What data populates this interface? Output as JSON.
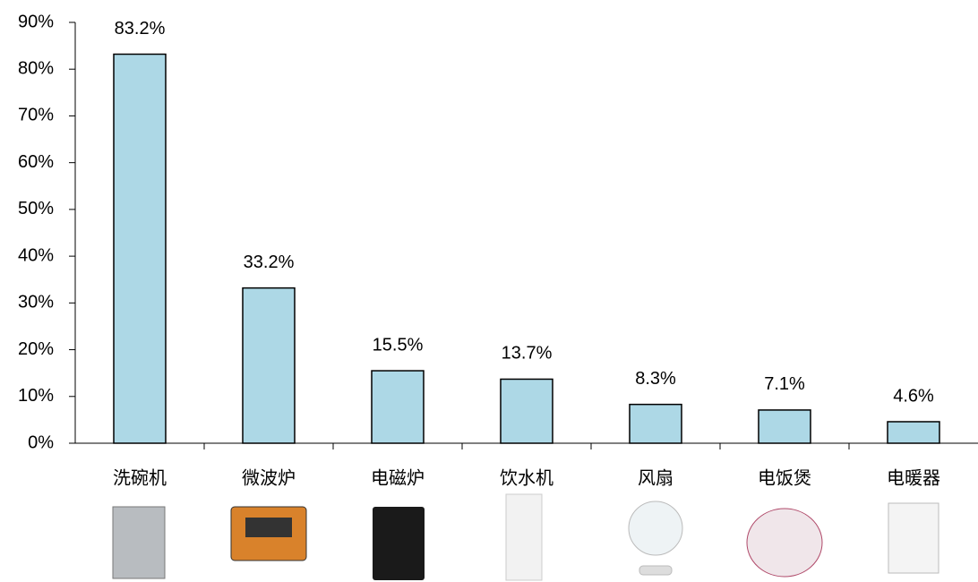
{
  "chart_data": {
    "type": "bar",
    "categories": [
      "洗碗机",
      "微波炉",
      "电磁炉",
      "饮水机",
      "风扇",
      "电饭煲",
      "电暖器"
    ],
    "values": [
      83.2,
      33.2,
      15.5,
      13.7,
      8.3,
      7.1,
      4.6
    ],
    "value_labels": [
      "83.2%",
      "33.2%",
      "15.5%",
      "13.7%",
      "8.3%",
      "7.1%",
      "4.6%"
    ],
    "color": "#add8e6",
    "ylim": [
      0,
      90
    ],
    "yticks": [
      {
        "value": 0,
        "label": "0%"
      },
      {
        "value": 10,
        "label": "10%"
      },
      {
        "value": 20,
        "label": "20%"
      },
      {
        "value": 30,
        "label": "30%"
      },
      {
        "value": 40,
        "label": "40%"
      },
      {
        "value": 50,
        "label": "50%"
      },
      {
        "value": 60,
        "label": "60%"
      },
      {
        "value": 70,
        "label": "70%"
      },
      {
        "value": 80,
        "label": "80%"
      },
      {
        "value": 90,
        "label": "90%"
      }
    ],
    "grid": false
  }
}
